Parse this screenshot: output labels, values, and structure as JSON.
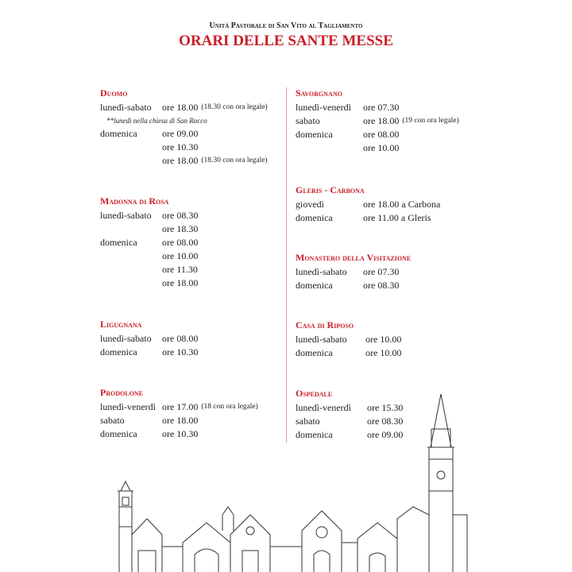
{
  "header": {
    "subtitle": "Unità Pastorale di San Vito al Tagliamento",
    "title": "ORARI DELLE SANTE MESSE"
  },
  "left": [
    {
      "name": "Duomo",
      "rows": [
        {
          "day": "lunedì-sabato",
          "time": "ore 18.00",
          "note": "(18.30 con ora legale)"
        },
        {
          "remark": "**lunedì nella chiesa di San Rocco"
        },
        {
          "day": "domenica",
          "time": "ore 09.00"
        },
        {
          "day": "",
          "time": "ore 10.30"
        },
        {
          "day": "",
          "time": "ore 18.00",
          "note": "(18.30 con ora legale)"
        }
      ]
    },
    {
      "name": "Madonna di Rosa",
      "rows": [
        {
          "day": "lunedì-sabato",
          "time": "ore 08.30"
        },
        {
          "day": "",
          "time": "ore 18.30"
        },
        {
          "day": "domenica",
          "time": "ore 08.00"
        },
        {
          "day": "",
          "time": "ore 10.00"
        },
        {
          "day": "",
          "time": "ore 11.30"
        },
        {
          "day": "",
          "time": "ore 18.00"
        }
      ]
    },
    {
      "name": "Ligugnana",
      "rows": [
        {
          "day": "lunedì-sabato",
          "time": "ore 08.00"
        },
        {
          "day": "domenica",
          "time": "ore 10.30"
        }
      ]
    },
    {
      "name": "Prodolone",
      "rows": [
        {
          "day": "lunedì-venerdì",
          "time": "ore 17.00",
          "note": "(18 con ora legale)"
        },
        {
          "day": "sabato",
          "time": "ore 18.00"
        },
        {
          "day": "domenica",
          "time": "ore 10.30"
        }
      ]
    }
  ],
  "right": [
    {
      "name": "Savorgnano",
      "rows": [
        {
          "day": "lunedì-venerdì",
          "time": "ore 07.30"
        },
        {
          "day": "sabato",
          "time": "ore 18.00",
          "note": "(19 con ora legale)"
        },
        {
          "day": "domenica",
          "time": "ore 08.00"
        },
        {
          "day": "",
          "time": "ore 10.00"
        }
      ]
    },
    {
      "name": "Gleris - Carbona",
      "rows": [
        {
          "day": "giovedì",
          "time": "ore 18.00 a Carbona"
        },
        {
          "day": "domenica",
          "time": "ore 11.00 a Gleris"
        }
      ]
    },
    {
      "name": "Monastero della Visitazione",
      "rows": [
        {
          "day": "lunedì-sabato",
          "time": "ore 07.30"
        },
        {
          "day": "domenica",
          "time": "ore 08.30"
        }
      ]
    },
    {
      "name": "Casa di Riposo",
      "rows": [
        {
          "day": "lunedì-sabato",
          "time": "ore 10.00"
        },
        {
          "day": "domenica",
          "time": "ore 10.00"
        }
      ]
    },
    {
      "name": "Ospedale",
      "rows": [
        {
          "day": "lunedì-venerdì",
          "time": "ore 15.30"
        },
        {
          "day": "sabato",
          "time": "ore 08.30"
        },
        {
          "day": "domenica",
          "time": "ore 09.00"
        }
      ]
    }
  ],
  "colors": {
    "accent": "#c8202a",
    "divider": "#d9a0a0"
  }
}
